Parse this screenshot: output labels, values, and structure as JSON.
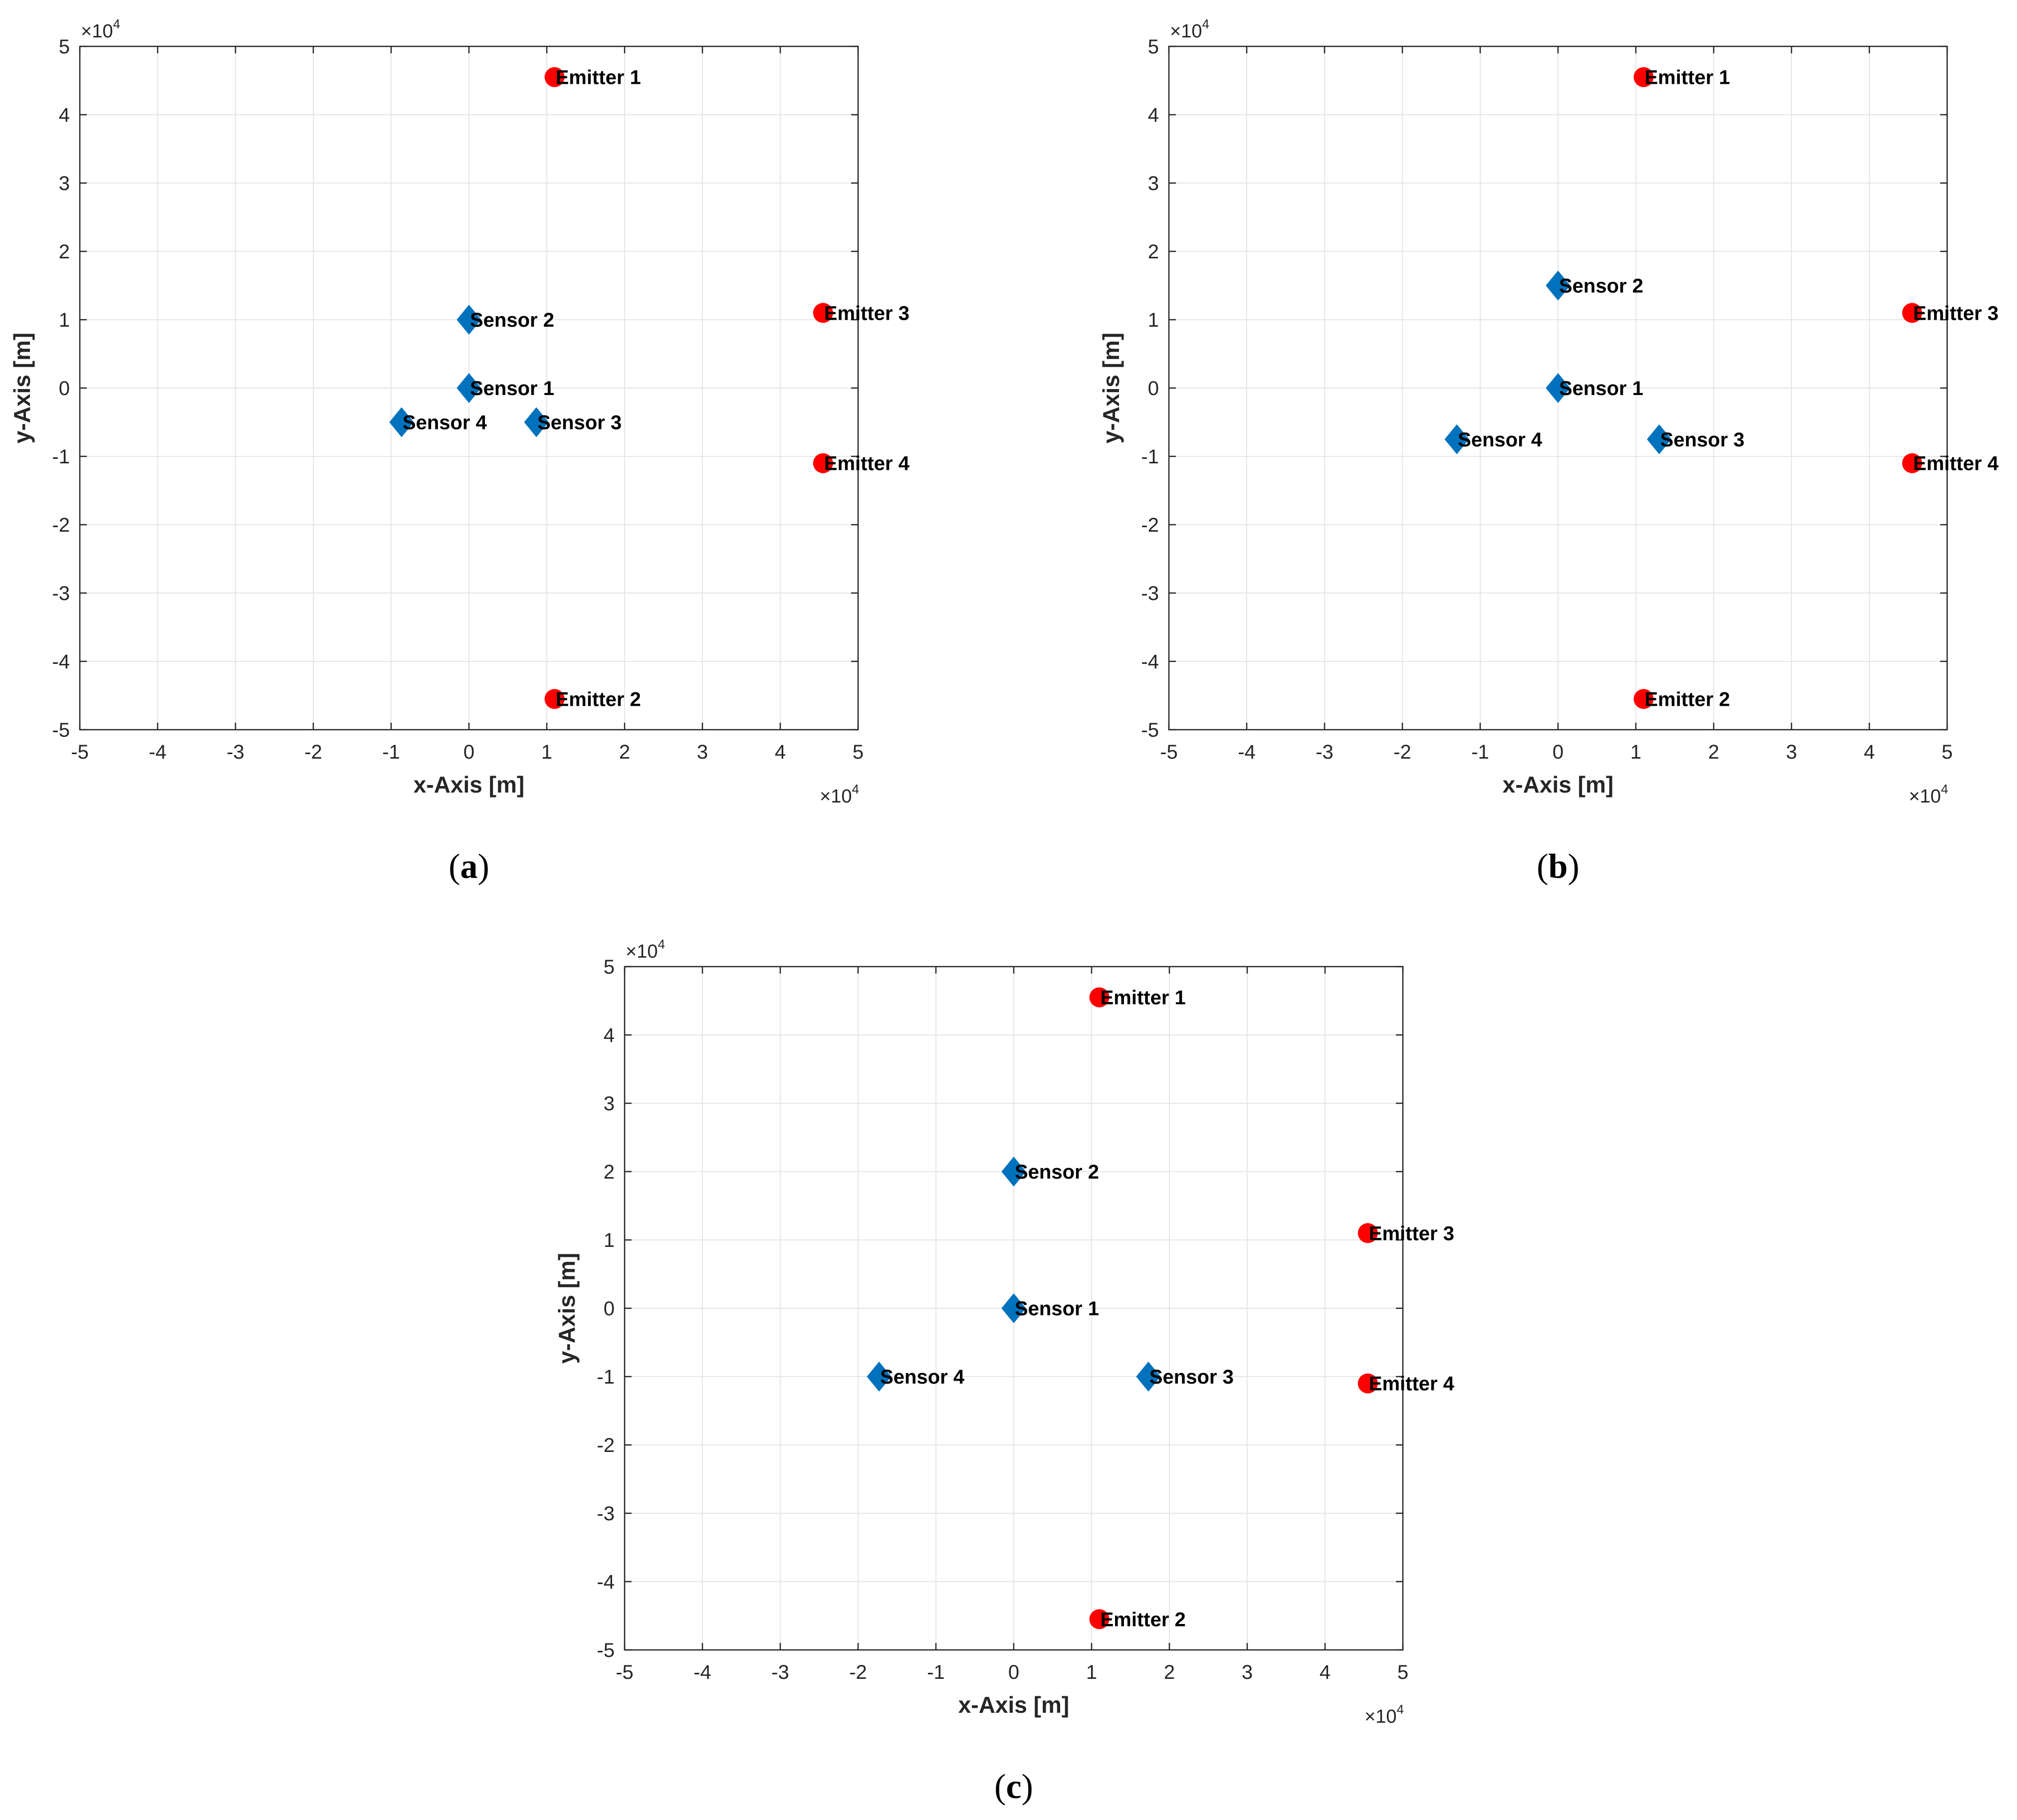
{
  "figure": {
    "subplot_labels": [
      "a",
      "b",
      "c"
    ]
  },
  "colors": {
    "sensor": "#0072BD",
    "emitter": "#FF0000",
    "grid": "#E6E6E6",
    "axis": "#262626"
  },
  "chart_data": [
    {
      "type": "scatter",
      "panel": "a",
      "xlabel": "x-Axis [m]",
      "ylabel": "y-Axis [m]",
      "xlim": [
        -5,
        5
      ],
      "ylim": [
        -5,
        5
      ],
      "xticks": [
        "-5",
        "-4",
        "-3",
        "-2",
        "-1",
        "0",
        "1",
        "2",
        "3",
        "4",
        "5"
      ],
      "yticks": [
        "-5",
        "-4",
        "-3",
        "-2",
        "-1",
        "0",
        "1",
        "2",
        "3",
        "4",
        "5"
      ],
      "x_multiplier": {
        "base": "×10",
        "exponent": "4"
      },
      "y_multiplier": {
        "base": "×10",
        "exponent": "4"
      },
      "grid": true,
      "series": [
        {
          "name": "Sensors",
          "marker": "diamond",
          "color": "#0072BD",
          "points": [
            {
              "label": "Sensor 1",
              "x": 0,
              "y": 0
            },
            {
              "label": "Sensor 2",
              "x": 0,
              "y": 1.0
            },
            {
              "label": "Sensor 3",
              "x": 0.866,
              "y": -0.5
            },
            {
              "label": "Sensor 4",
              "x": -0.866,
              "y": -0.5
            }
          ]
        },
        {
          "name": "Emitters",
          "marker": "circle",
          "color": "#FF0000",
          "points": [
            {
              "label": "Emitter 1",
              "x": 1.1,
              "y": 4.55
            },
            {
              "label": "Emitter 2",
              "x": 1.1,
              "y": -4.55
            },
            {
              "label": "Emitter 3",
              "x": 4.55,
              "y": 1.1
            },
            {
              "label": "Emitter 4",
              "x": 4.55,
              "y": -1.1
            }
          ]
        }
      ]
    },
    {
      "type": "scatter",
      "panel": "b",
      "xlabel": "x-Axis [m]",
      "ylabel": "y-Axis [m]",
      "xlim": [
        -5,
        5
      ],
      "ylim": [
        -5,
        5
      ],
      "xticks": [
        "-5",
        "-4",
        "-3",
        "-2",
        "-1",
        "0",
        "1",
        "2",
        "3",
        "4",
        "5"
      ],
      "yticks": [
        "-5",
        "-4",
        "-3",
        "-2",
        "-1",
        "0",
        "1",
        "2",
        "3",
        "4",
        "5"
      ],
      "x_multiplier": {
        "base": "×10",
        "exponent": "4"
      },
      "y_multiplier": {
        "base": "×10",
        "exponent": "4"
      },
      "grid": true,
      "series": [
        {
          "name": "Sensors",
          "marker": "diamond",
          "color": "#0072BD",
          "points": [
            {
              "label": "Sensor 1",
              "x": 0,
              "y": 0
            },
            {
              "label": "Sensor 2",
              "x": 0,
              "y": 1.5
            },
            {
              "label": "Sensor 3",
              "x": 1.3,
              "y": -0.75
            },
            {
              "label": "Sensor 4",
              "x": -1.3,
              "y": -0.75
            }
          ]
        },
        {
          "name": "Emitters",
          "marker": "circle",
          "color": "#FF0000",
          "points": [
            {
              "label": "Emitter 1",
              "x": 1.1,
              "y": 4.55
            },
            {
              "label": "Emitter 2",
              "x": 1.1,
              "y": -4.55
            },
            {
              "label": "Emitter 3",
              "x": 4.55,
              "y": 1.1
            },
            {
              "label": "Emitter 4",
              "x": 4.55,
              "y": -1.1
            }
          ]
        }
      ]
    },
    {
      "type": "scatter",
      "panel": "c",
      "xlabel": "x-Axis [m]",
      "ylabel": "y-Axis [m]",
      "xlim": [
        -5,
        5
      ],
      "ylim": [
        -5,
        5
      ],
      "xticks": [
        "-5",
        "-4",
        "-3",
        "-2",
        "-1",
        "0",
        "1",
        "2",
        "3",
        "4",
        "5"
      ],
      "yticks": [
        "-5",
        "-4",
        "-3",
        "-2",
        "-1",
        "0",
        "1",
        "2",
        "3",
        "4",
        "5"
      ],
      "x_multiplier": {
        "base": "×10",
        "exponent": "4"
      },
      "y_multiplier": {
        "base": "×10",
        "exponent": "4"
      },
      "grid": true,
      "series": [
        {
          "name": "Sensors",
          "marker": "diamond",
          "color": "#0072BD",
          "points": [
            {
              "label": "Sensor 1",
              "x": 0,
              "y": 0
            },
            {
              "label": "Sensor 2",
              "x": 0,
              "y": 2.0
            },
            {
              "label": "Sensor 3",
              "x": 1.73,
              "y": -1.0
            },
            {
              "label": "Sensor 4",
              "x": -1.73,
              "y": -1.0
            }
          ]
        },
        {
          "name": "Emitters",
          "marker": "circle",
          "color": "#FF0000",
          "points": [
            {
              "label": "Emitter 1",
              "x": 1.1,
              "y": 4.55
            },
            {
              "label": "Emitter 2",
              "x": 1.1,
              "y": -4.55
            },
            {
              "label": "Emitter 3",
              "x": 4.55,
              "y": 1.1
            },
            {
              "label": "Emitter 4",
              "x": 4.55,
              "y": -1.1
            }
          ]
        }
      ]
    }
  ]
}
